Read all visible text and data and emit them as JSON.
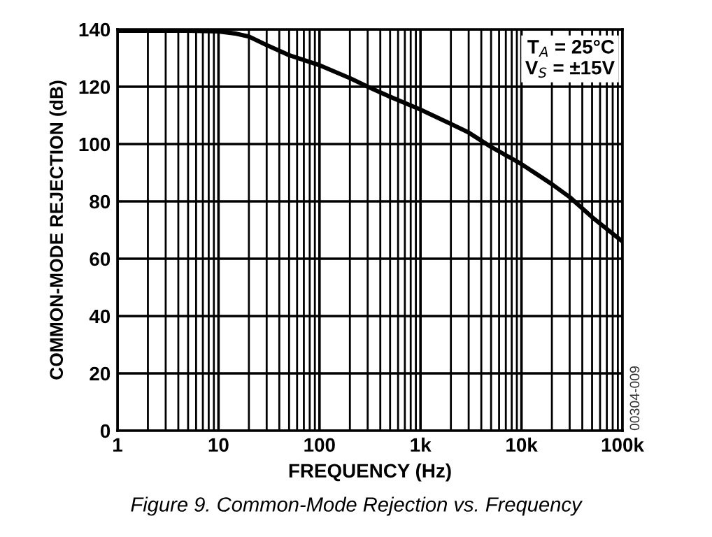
{
  "chart_data": {
    "type": "line",
    "xlabel": "FREQUENCY (Hz)",
    "ylabel": "COMMON-MODE REJECTION (dB)",
    "x": [
      1,
      5,
      10,
      15,
      20,
      30,
      50,
      100,
      200,
      300,
      500,
      1000,
      2000,
      3000,
      5000,
      10000,
      20000,
      30000,
      50000,
      100000
    ],
    "series": [
      {
        "color": "#000000",
        "values": [
          139.5,
          139.5,
          139.3,
          138.5,
          137.5,
          134.5,
          131,
          127.5,
          123,
          120,
          116.5,
          112,
          107,
          104,
          99,
          93,
          86,
          81.5,
          74.5,
          66
        ]
      }
    ],
    "log": "x",
    "xlim": [
      1,
      100000
    ],
    "ylim": [
      0,
      140
    ],
    "xticks": [
      1,
      10,
      100,
      {
        "value": 1000,
        "label": "1k"
      },
      {
        "value": 10000,
        "label": "10k"
      },
      {
        "value": 100000,
        "label": "100k"
      }
    ],
    "yticks": [
      0,
      20,
      40,
      60,
      80,
      100,
      120,
      140
    ],
    "grid": true,
    "marker": "none",
    "line_style": "solid",
    "annotations": [
      "T$_{A}$ = 25°C\nV$_{S}$ = ±15V",
      "00304-009",
      "Figure 9. Common-Mode Rejection vs. Frequency"
    ]
  }
}
